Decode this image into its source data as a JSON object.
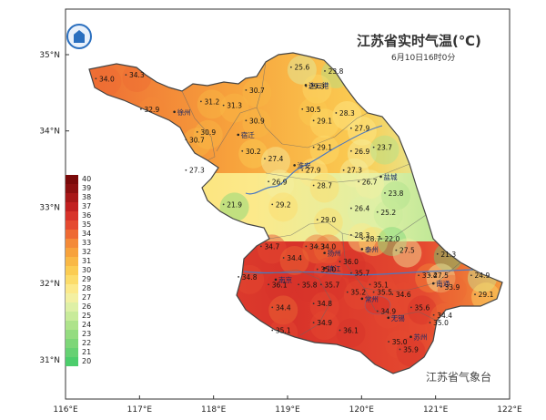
{
  "title": "江苏省实时气温(℃)",
  "subtitle": "6月10日16时0分",
  "source": "江苏省气象台",
  "logo_icon": "meteorological-bureau-logo",
  "axes": {
    "lon_ticks": [
      "116°E",
      "117°E",
      "118°E",
      "119°E",
      "120°E",
      "121°E",
      "122°E"
    ],
    "lat_ticks": [
      "35°N",
      "34°N",
      "33°N",
      "32°N",
      "31°N"
    ]
  },
  "legend": [
    {
      "label": "40",
      "color": "#7a0a0a"
    },
    {
      "label": "39",
      "color": "#8c1010"
    },
    {
      "label": "38",
      "color": "#a81818"
    },
    {
      "label": "37",
      "color": "#c22020"
    },
    {
      "label": "36",
      "color": "#d8332a"
    },
    {
      "label": "35",
      "color": "#e54a30"
    },
    {
      "label": "34",
      "color": "#ee6a33"
    },
    {
      "label": "33",
      "color": "#f48a38"
    },
    {
      "label": "32",
      "color": "#f7a23c"
    },
    {
      "label": "31",
      "color": "#f9b845"
    },
    {
      "label": "30",
      "color": "#fbcc52"
    },
    {
      "label": "29",
      "color": "#fcdc6a"
    },
    {
      "label": "28",
      "color": "#fce98a"
    },
    {
      "label": "27",
      "color": "#f3f0a2"
    },
    {
      "label": "26",
      "color": "#def0a6"
    },
    {
      "label": "25",
      "color": "#c8eb9a"
    },
    {
      "label": "24",
      "color": "#aee38b"
    },
    {
      "label": "23",
      "color": "#94dc80"
    },
    {
      "label": "22",
      "color": "#7dd678"
    },
    {
      "label": "21",
      "color": "#66d173"
    },
    {
      "label": "20",
      "color": "#4ccd6c"
    }
  ],
  "cities": [
    {
      "name": "徐州",
      "lon": 117.45,
      "lat": 34.25
    },
    {
      "name": "宿迁",
      "lon": 118.3,
      "lat": 33.95
    },
    {
      "name": "连云港",
      "lon": 119.2,
      "lat": 34.6
    },
    {
      "name": "淮安",
      "lon": 119.05,
      "lat": 33.55
    },
    {
      "name": "盐城",
      "lon": 120.2,
      "lat": 33.4
    },
    {
      "name": "扬州",
      "lon": 119.45,
      "lat": 32.4
    },
    {
      "name": "泰州",
      "lon": 119.95,
      "lat": 32.45
    },
    {
      "name": "南京",
      "lon": 118.8,
      "lat": 32.05
    },
    {
      "name": "镇江",
      "lon": 119.45,
      "lat": 32.2
    },
    {
      "name": "南通",
      "lon": 120.9,
      "lat": 32.0
    },
    {
      "name": "常州",
      "lon": 119.95,
      "lat": 31.8
    },
    {
      "name": "无锡",
      "lon": 120.3,
      "lat": 31.55
    },
    {
      "name": "苏州",
      "lon": 120.6,
      "lat": 31.3
    }
  ],
  "temperatures": [
    {
      "v": "25.6",
      "lon": 119.15,
      "lat": 34.8
    },
    {
      "v": "23.8",
      "lon": 119.6,
      "lat": 34.75
    },
    {
      "v": "34.0",
      "lon": 116.55,
      "lat": 34.65
    },
    {
      "v": "34.3",
      "lon": 116.95,
      "lat": 34.7
    },
    {
      "v": "29.3",
      "lon": 119.35,
      "lat": 34.55
    },
    {
      "v": "30.7",
      "lon": 118.55,
      "lat": 34.5
    },
    {
      "v": "31.2",
      "lon": 117.95,
      "lat": 34.35
    },
    {
      "v": "31.3",
      "lon": 118.25,
      "lat": 34.3
    },
    {
      "v": "32.9",
      "lon": 117.15,
      "lat": 34.25
    },
    {
      "v": "30.5",
      "lon": 119.3,
      "lat": 34.25
    },
    {
      "v": "28.3",
      "lon": 119.75,
      "lat": 34.2
    },
    {
      "v": "30.9",
      "lon": 118.55,
      "lat": 34.1
    },
    {
      "v": "29.1",
      "lon": 119.45,
      "lat": 34.1
    },
    {
      "v": "27.9",
      "lon": 119.95,
      "lat": 34.0
    },
    {
      "v": "30.9",
      "lon": 117.9,
      "lat": 33.95
    },
    {
      "v": "30.7",
      "lon": 117.75,
      "lat": 33.85
    },
    {
      "v": "29.1",
      "lon": 119.45,
      "lat": 33.75
    },
    {
      "v": "30.2",
      "lon": 118.5,
      "lat": 33.7
    },
    {
      "v": "26.9",
      "lon": 119.95,
      "lat": 33.7
    },
    {
      "v": "23.7",
      "lon": 120.25,
      "lat": 33.75
    },
    {
      "v": "27.4",
      "lon": 118.8,
      "lat": 33.6
    },
    {
      "v": "27.9",
      "lon": 119.3,
      "lat": 33.45
    },
    {
      "v": "27.3",
      "lon": 117.75,
      "lat": 33.45
    },
    {
      "v": "27.3",
      "lon": 119.85,
      "lat": 33.45
    },
    {
      "v": "26.7",
      "lon": 120.05,
      "lat": 33.3
    },
    {
      "v": "26.9",
      "lon": 118.85,
      "lat": 33.3
    },
    {
      "v": "28.7",
      "lon": 119.45,
      "lat": 33.25
    },
    {
      "v": "23.8",
      "lon": 120.4,
      "lat": 33.15
    },
    {
      "v": "21.9",
      "lon": 118.25,
      "lat": 33.0
    },
    {
      "v": "29.2",
      "lon": 118.9,
      "lat": 33.0
    },
    {
      "v": "26.4",
      "lon": 119.95,
      "lat": 32.95
    },
    {
      "v": "25.2",
      "lon": 120.3,
      "lat": 32.9
    },
    {
      "v": "29.0",
      "lon": 119.5,
      "lat": 32.8
    },
    {
      "v": "28.3",
      "lon": 119.95,
      "lat": 32.6
    },
    {
      "v": "28.7",
      "lon": 120.1,
      "lat": 32.55
    },
    {
      "v": "22.0",
      "lon": 120.35,
      "lat": 32.55
    },
    {
      "v": "34.7",
      "lon": 118.75,
      "lat": 32.45
    },
    {
      "v": "34.3",
      "lon": 119.35,
      "lat": 32.45
    },
    {
      "v": "34.0",
      "lon": 119.5,
      "lat": 32.45
    },
    {
      "v": "27.5",
      "lon": 120.55,
      "lat": 32.4
    },
    {
      "v": "21.3",
      "lon": 121.1,
      "lat": 32.35
    },
    {
      "v": "34.4",
      "lon": 119.05,
      "lat": 32.3
    },
    {
      "v": "36.0",
      "lon": 119.8,
      "lat": 32.25
    },
    {
      "v": "35.0",
      "lon": 119.5,
      "lat": 32.15
    },
    {
      "v": "35.7",
      "lon": 119.95,
      "lat": 32.1
    },
    {
      "v": "33.4",
      "lon": 120.85,
      "lat": 32.07
    },
    {
      "v": "27.5",
      "lon": 121.0,
      "lat": 32.07
    },
    {
      "v": "24.9",
      "lon": 121.55,
      "lat": 32.07
    },
    {
      "v": "34.8",
      "lon": 118.45,
      "lat": 32.05
    },
    {
      "v": "36.1",
      "lon": 118.85,
      "lat": 31.95
    },
    {
      "v": "35.8",
      "lon": 119.25,
      "lat": 31.95
    },
    {
      "v": "35.7",
      "lon": 119.55,
      "lat": 31.95
    },
    {
      "v": "35.1",
      "lon": 120.2,
      "lat": 31.95
    },
    {
      "v": "33.9",
      "lon": 121.15,
      "lat": 31.92
    },
    {
      "v": "35.2",
      "lon": 119.9,
      "lat": 31.85
    },
    {
      "v": "35.5",
      "lon": 120.25,
      "lat": 31.85
    },
    {
      "v": "34.6",
      "lon": 120.5,
      "lat": 31.82
    },
    {
      "v": "29.1",
      "lon": 121.6,
      "lat": 31.82
    },
    {
      "v": "34.4",
      "lon": 118.9,
      "lat": 31.65
    },
    {
      "v": "34.8",
      "lon": 119.45,
      "lat": 31.7
    },
    {
      "v": "34.9",
      "lon": 120.3,
      "lat": 31.6
    },
    {
      "v": "35.6",
      "lon": 120.75,
      "lat": 31.65
    },
    {
      "v": "35.0",
      "lon": 121.0,
      "lat": 31.45
    },
    {
      "v": "34.4",
      "lon": 121.05,
      "lat": 31.55
    },
    {
      "v": "34.9",
      "lon": 119.45,
      "lat": 31.45
    },
    {
      "v": "36.1",
      "lon": 119.8,
      "lat": 31.35
    },
    {
      "v": "35.1",
      "lon": 118.9,
      "lat": 31.35
    },
    {
      "v": "35.0",
      "lon": 120.45,
      "lat": 31.2
    },
    {
      "v": "35.9",
      "lon": 120.6,
      "lat": 31.1
    }
  ]
}
